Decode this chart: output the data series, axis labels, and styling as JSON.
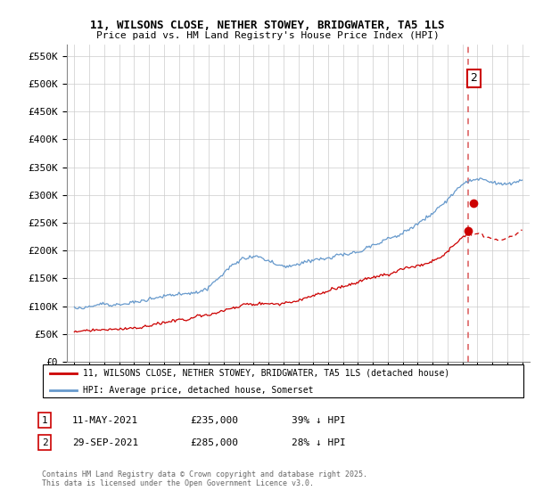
{
  "title_line1": "11, WILSONS CLOSE, NETHER STOWEY, BRIDGWATER, TA5 1LS",
  "title_line2": "Price paid vs. HM Land Registry's House Price Index (HPI)",
  "ylabel_ticks": [
    "£0",
    "£50K",
    "£100K",
    "£150K",
    "£200K",
    "£250K",
    "£300K",
    "£350K",
    "£400K",
    "£450K",
    "£500K",
    "£550K"
  ],
  "ytick_vals": [
    0,
    50000,
    100000,
    150000,
    200000,
    250000,
    300000,
    350000,
    400000,
    450000,
    500000,
    550000
  ],
  "ylim": [
    0,
    570000
  ],
  "sale1_x": 2021.37,
  "sale1_price": 235000,
  "sale2_x": 2021.75,
  "sale2_price": 285000,
  "hpi_color": "#6699CC",
  "sale_color": "#CC0000",
  "vline_color": "#DD6666",
  "legend_label1": "11, WILSONS CLOSE, NETHER STOWEY, BRIDGWATER, TA5 1LS (detached house)",
  "legend_label2": "HPI: Average price, detached house, Somerset",
  "footer": "Contains HM Land Registry data © Crown copyright and database right 2025.\nThis data is licensed under the Open Government Licence v3.0.",
  "xstart_year": 1995,
  "xend_year": 2025,
  "hpi_seed": 12,
  "sale_seed": 77
}
